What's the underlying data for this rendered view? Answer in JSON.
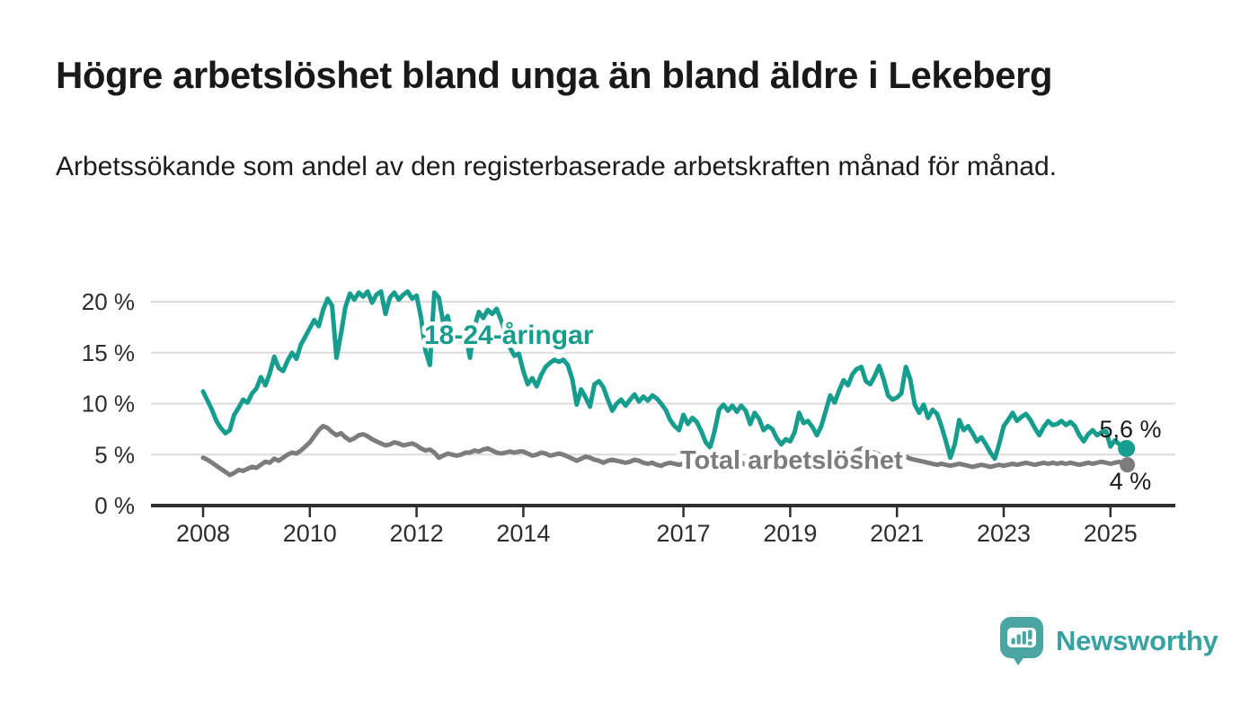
{
  "title": "Högre arbetslöshet bland unga än bland äldre i Lekeberg",
  "subtitle": "Arbetssökande som andel av den registerbaserade arbetskraften månad för månad.",
  "footer": {
    "brand": "Newsworthy"
  },
  "colors": {
    "young_line": "#179d8d",
    "total_line": "#7c7c7c",
    "grid": "#dcdcdc",
    "axis": "#2f2f2f",
    "tick_text": "#2d2d2d",
    "value_text": "#1a1a1a",
    "logo": "#4aa5a3"
  },
  "chart_data": {
    "type": "line",
    "title": "Högre arbetslöshet bland unga än bland äldre i Lekeberg",
    "subtitle": "Arbetssökande som andel av den registerbaserade arbetskraften månad för månad.",
    "x_start": "2008-01",
    "x_end": "2025-04",
    "frequency": "monthly",
    "grid": "horizontal",
    "ylim": [
      0,
      21.5
    ],
    "yticks": [
      {
        "value": 0,
        "label": "0 %"
      },
      {
        "value": 5,
        "label": "5 %"
      },
      {
        "value": 10,
        "label": "10 %"
      },
      {
        "value": 15,
        "label": "15 %"
      },
      {
        "value": 20,
        "label": "20 %"
      }
    ],
    "xticks": [
      {
        "year": 2008,
        "label": "2008"
      },
      {
        "year": 2010,
        "label": "2010"
      },
      {
        "year": 2012,
        "label": "2012"
      },
      {
        "year": 2014,
        "label": "2014"
      },
      {
        "year": 2017,
        "label": "2017"
      },
      {
        "year": 2019,
        "label": "2019"
      },
      {
        "year": 2021,
        "label": "2021"
      },
      {
        "year": 2023,
        "label": "2023"
      },
      {
        "year": 2025,
        "label": "2025"
      }
    ],
    "series": [
      {
        "name": "18-24-åringar",
        "color": "#179d8d",
        "end_value": 5.6,
        "end_label": "5,6 %",
        "values": [
          11.2,
          10.3,
          9.4,
          8.3,
          7.6,
          7.1,
          7.4,
          8.9,
          9.6,
          10.4,
          10.1,
          11.0,
          11.5,
          12.6,
          11.8,
          13.0,
          14.6,
          13.5,
          13.2,
          14.2,
          15.0,
          14.4,
          15.8,
          16.6,
          17.4,
          18.2,
          17.6,
          19.2,
          20.3,
          19.6,
          14.5,
          16.8,
          19.5,
          20.8,
          20.2,
          20.9,
          20.5,
          21.0,
          19.9,
          20.7,
          21.0,
          18.8,
          20.4,
          20.9,
          20.2,
          20.7,
          21.0,
          20.3,
          20.6,
          18.5,
          15.2,
          13.8,
          20.9,
          20.4,
          17.9,
          18.6,
          16.6,
          16.9,
          16.1,
          16.8,
          14.5,
          17.5,
          19.0,
          18.4,
          19.2,
          18.8,
          19.3,
          18.2,
          17.0,
          15.5,
          14.7,
          14.9,
          13.2,
          11.9,
          12.5,
          11.7,
          12.8,
          13.6,
          14.0,
          14.3,
          14.1,
          14.3,
          13.8,
          12.4,
          9.9,
          11.4,
          10.6,
          9.7,
          11.9,
          12.2,
          11.6,
          10.4,
          9.3,
          10.0,
          10.4,
          9.8,
          10.4,
          10.9,
          10.2,
          10.7,
          10.3,
          10.8,
          10.5,
          10.0,
          9.4,
          8.4,
          7.8,
          7.4,
          8.9,
          8.0,
          8.6,
          8.2,
          7.3,
          6.2,
          5.7,
          7.3,
          9.4,
          9.9,
          9.3,
          9.8,
          9.2,
          9.8,
          9.3,
          8.0,
          9.1,
          8.5,
          7.4,
          7.8,
          7.5,
          6.6,
          6.0,
          6.5,
          6.3,
          7.2,
          9.1,
          8.1,
          8.3,
          7.7,
          6.9,
          7.8,
          9.3,
          10.8,
          10.1,
          11.3,
          12.3,
          11.8,
          12.9,
          13.4,
          13.6,
          12.2,
          11.9,
          12.7,
          13.7,
          12.4,
          10.8,
          10.4,
          10.6,
          11.0,
          13.6,
          12.4,
          9.9,
          9.1,
          9.9,
          8.6,
          9.4,
          9.0,
          7.8,
          6.3,
          4.7,
          6.0,
          8.4,
          7.4,
          7.8,
          7.1,
          6.3,
          6.7,
          6.0,
          5.2,
          4.6,
          6.1,
          7.8,
          8.4,
          9.1,
          8.3,
          8.7,
          9.0,
          8.4,
          7.6,
          6.9,
          7.7,
          8.3,
          7.9,
          8.0,
          8.3,
          7.9,
          8.2,
          7.8,
          6.9,
          6.3,
          7.0,
          7.4,
          6.9,
          7.2,
          7.3,
          5.8,
          6.4,
          6.0,
          5.6
        ]
      },
      {
        "name": "Total arbetslöshet",
        "color": "#7c7c7c",
        "end_value": 4.0,
        "end_label": "4 %",
        "values": [
          4.7,
          4.5,
          4.2,
          3.9,
          3.6,
          3.3,
          3.0,
          3.2,
          3.5,
          3.4,
          3.6,
          3.8,
          3.7,
          4.0,
          4.3,
          4.2,
          4.6,
          4.4,
          4.7,
          5.0,
          5.2,
          5.1,
          5.4,
          5.8,
          6.2,
          6.8,
          7.4,
          7.8,
          7.6,
          7.2,
          6.9,
          7.1,
          6.7,
          6.4,
          6.6,
          6.9,
          7.0,
          6.8,
          6.5,
          6.3,
          6.1,
          5.9,
          6.0,
          6.2,
          6.1,
          5.9,
          6.0,
          6.1,
          5.9,
          5.6,
          5.4,
          5.5,
          5.2,
          4.7,
          4.9,
          5.1,
          5.0,
          4.9,
          5.0,
          5.2,
          5.2,
          5.4,
          5.3,
          5.5,
          5.6,
          5.4,
          5.2,
          5.1,
          5.2,
          5.3,
          5.2,
          5.3,
          5.3,
          5.1,
          4.9,
          5.0,
          5.2,
          5.1,
          4.9,
          5.0,
          5.1,
          5.0,
          4.8,
          4.6,
          4.4,
          4.6,
          4.8,
          4.7,
          4.5,
          4.4,
          4.2,
          4.4,
          4.5,
          4.4,
          4.3,
          4.2,
          4.3,
          4.5,
          4.4,
          4.2,
          4.1,
          4.2,
          4.0,
          3.9,
          4.1,
          4.2,
          4.1,
          4.0,
          4.1,
          4.3,
          4.2,
          4.0,
          3.9,
          3.8,
          3.7,
          3.9,
          4.1,
          4.2,
          4.1,
          4.2,
          4.1,
          4.2,
          4.0,
          3.9,
          4.0,
          3.8,
          3.7,
          3.8,
          3.7,
          3.6,
          3.7,
          3.8,
          3.8,
          3.9,
          4.0,
          3.9,
          3.8,
          3.9,
          4.0,
          4.1,
          4.0,
          4.1,
          4.2,
          4.4,
          4.5,
          4.6,
          5.0,
          5.4,
          5.6,
          5.5,
          5.3,
          5.2,
          5.0,
          4.9,
          4.8,
          4.9,
          5.0,
          4.9,
          4.8,
          4.6,
          4.5,
          4.4,
          4.3,
          4.2,
          4.1,
          4.0,
          4.1,
          4.0,
          3.9,
          4.0,
          4.1,
          4.0,
          3.9,
          3.8,
          3.9,
          4.0,
          3.9,
          3.8,
          3.9,
          4.0,
          3.9,
          4.0,
          4.1,
          4.0,
          4.1,
          4.2,
          4.1,
          4.0,
          4.1,
          4.2,
          4.1,
          4.2,
          4.1,
          4.2,
          4.1,
          4.2,
          4.1,
          4.0,
          4.1,
          4.2,
          4.1,
          4.2,
          4.3,
          4.2,
          4.1,
          4.2,
          4.3,
          4.0
        ]
      }
    ]
  }
}
